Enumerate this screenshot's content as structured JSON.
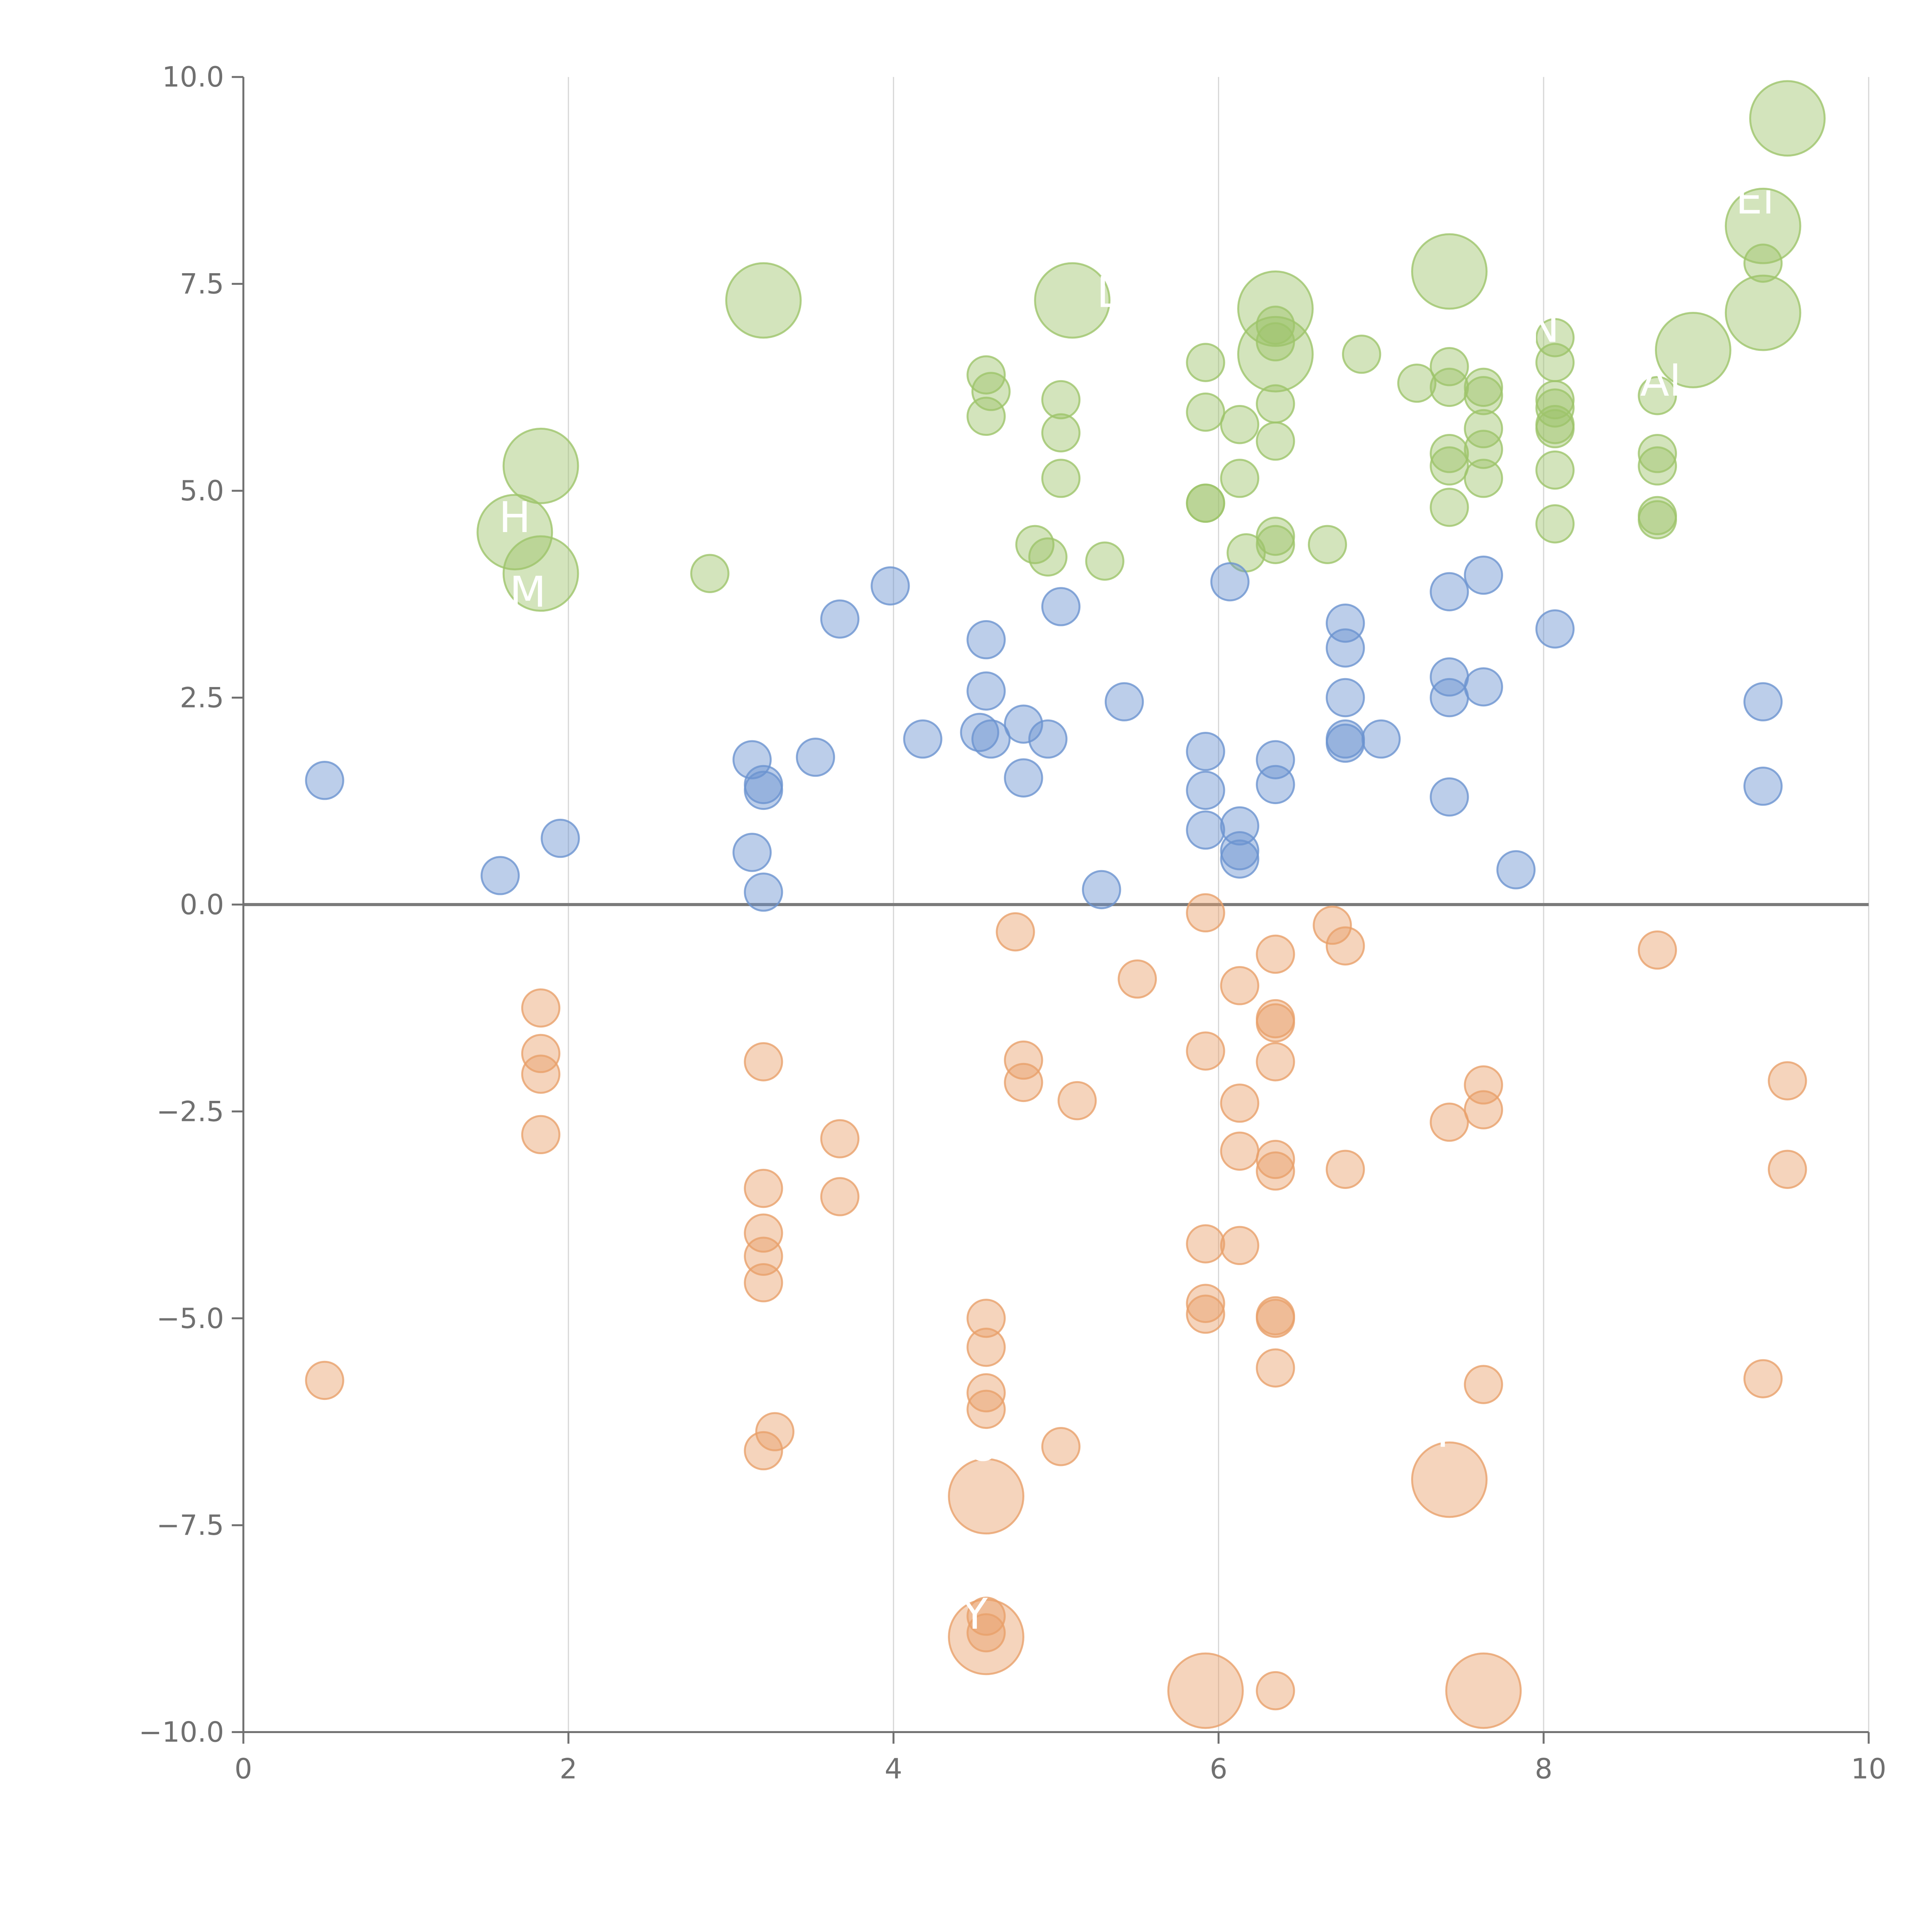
{
  "chart_data": {
    "type": "scatter",
    "title": "",
    "xlabel": "",
    "ylabel": "",
    "xlim": [
      0,
      10
    ],
    "ylim": [
      -10,
      10
    ],
    "x_ticks": [
      "0",
      "2",
      "4",
      "6",
      "8",
      "10"
    ],
    "y_ticks": [
      "−10.0",
      "−7.5",
      "−5.0",
      "−2.5",
      "0.0",
      "2.5",
      "5.0",
      "7.5",
      "10.0"
    ],
    "grid": "vertical-only",
    "zero_line": true,
    "colors": {
      "positive_high": "#9ec46a",
      "positive_low": "#6b93d0",
      "negative": "#e8a06a"
    },
    "series": [
      {
        "color_key": "positive_high",
        "points": [
          [
            3.2,
            7.3,
            "L"
          ],
          [
            5.1,
            7.3,
            "L"
          ],
          [
            6.35,
            7.2,
            "L"
          ],
          [
            7.42,
            7.65,
            "L"
          ],
          [
            9.5,
            9.5,
            "L"
          ],
          [
            9.35,
            8.2,
            "L"
          ],
          [
            9.35,
            7.15,
            "L"
          ],
          [
            8.92,
            6.7,
            "L"
          ],
          [
            6.35,
            6.65,
            "L"
          ],
          [
            1.83,
            5.3,
            "L"
          ],
          [
            1.67,
            4.5,
            "L"
          ],
          [
            1.83,
            4.0,
            "L"
          ],
          [
            2.87,
            4.0
          ],
          [
            4.57,
            6.4
          ],
          [
            4.6,
            6.2
          ],
          [
            4.57,
            5.9
          ],
          [
            5.03,
            6.1
          ],
          [
            5.03,
            5.7
          ],
          [
            5.03,
            5.15
          ],
          [
            4.87,
            4.35
          ],
          [
            4.95,
            4.2
          ],
          [
            5.3,
            4.15
          ],
          [
            5.92,
            6.55
          ],
          [
            5.92,
            5.95
          ],
          [
            5.92,
            4.85
          ],
          [
            5.92,
            4.85
          ],
          [
            6.13,
            5.8
          ],
          [
            6.13,
            5.15
          ],
          [
            6.17,
            4.25
          ],
          [
            6.35,
            7.0
          ],
          [
            6.35,
            6.8
          ],
          [
            6.35,
            6.05
          ],
          [
            6.35,
            5.6
          ],
          [
            6.35,
            4.45
          ],
          [
            6.35,
            4.35
          ],
          [
            6.67,
            4.35
          ],
          [
            6.88,
            6.65
          ],
          [
            7.22,
            6.3
          ],
          [
            7.42,
            6.5
          ],
          [
            7.42,
            6.25
          ],
          [
            7.42,
            5.45
          ],
          [
            7.42,
            5.3
          ],
          [
            7.42,
            4.8
          ],
          [
            7.63,
            6.25
          ],
          [
            7.63,
            6.15
          ],
          [
            7.63,
            5.75
          ],
          [
            7.63,
            5.5
          ],
          [
            7.63,
            5.15
          ],
          [
            8.07,
            6.85
          ],
          [
            8.07,
            6.55
          ],
          [
            8.07,
            6.1
          ],
          [
            8.07,
            6.0
          ],
          [
            8.07,
            5.8
          ],
          [
            8.07,
            5.75
          ],
          [
            8.07,
            5.25
          ],
          [
            8.07,
            4.6
          ],
          [
            8.7,
            6.15
          ],
          [
            8.7,
            5.45
          ],
          [
            8.7,
            5.3
          ],
          [
            8.7,
            4.7
          ],
          [
            8.7,
            4.65
          ],
          [
            9.35,
            7.75
          ]
        ]
      },
      {
        "color_key": "positive_low",
        "points": [
          [
            0.5,
            1.5
          ],
          [
            1.58,
            0.35
          ],
          [
            1.95,
            0.8
          ],
          [
            3.13,
            1.75
          ],
          [
            3.13,
            0.63
          ],
          [
            3.2,
            1.45
          ],
          [
            3.2,
            1.38
          ],
          [
            3.2,
            0.15
          ],
          [
            3.52,
            1.78
          ],
          [
            3.67,
            3.45
          ],
          [
            3.98,
            3.85
          ],
          [
            4.18,
            2.0
          ],
          [
            4.53,
            2.08
          ],
          [
            4.57,
            3.2
          ],
          [
            4.57,
            2.58
          ],
          [
            4.6,
            2.0
          ],
          [
            4.8,
            2.18
          ],
          [
            4.8,
            1.53
          ],
          [
            4.95,
            2.0
          ],
          [
            5.03,
            3.6
          ],
          [
            5.28,
            0.18
          ],
          [
            5.42,
            2.45
          ],
          [
            5.92,
            1.85
          ],
          [
            5.92,
            1.38
          ],
          [
            5.92,
            0.9
          ],
          [
            6.07,
            3.9
          ],
          [
            6.13,
            0.95
          ],
          [
            6.13,
            0.65
          ],
          [
            6.13,
            0.55
          ],
          [
            6.35,
            1.75
          ],
          [
            6.35,
            1.45
          ],
          [
            6.78,
            3.4
          ],
          [
            6.78,
            3.1
          ],
          [
            6.78,
            2.5
          ],
          [
            6.78,
            2.0
          ],
          [
            6.78,
            1.95
          ],
          [
            7.0,
            2.0
          ],
          [
            7.42,
            3.78
          ],
          [
            7.42,
            2.75
          ],
          [
            7.42,
            2.5
          ],
          [
            7.42,
            1.3
          ],
          [
            7.63,
            3.98
          ],
          [
            7.63,
            2.63
          ],
          [
            7.83,
            0.42
          ],
          [
            8.07,
            3.33
          ],
          [
            9.35,
            2.45
          ],
          [
            9.35,
            1.43
          ]
        ]
      },
      {
        "color_key": "negative",
        "points": [
          [
            4.57,
            -7.15,
            "L"
          ],
          [
            4.57,
            -8.85,
            "L"
          ],
          [
            5.92,
            -9.5,
            "L"
          ],
          [
            7.42,
            -6.95,
            "L"
          ],
          [
            7.63,
            -9.5,
            "L"
          ],
          [
            0.5,
            -5.75
          ],
          [
            1.83,
            -1.25
          ],
          [
            1.83,
            -1.8
          ],
          [
            1.83,
            -2.05
          ],
          [
            1.83,
            -2.78
          ],
          [
            3.2,
            -1.9
          ],
          [
            3.2,
            -3.43
          ],
          [
            3.2,
            -3.97
          ],
          [
            3.2,
            -4.25
          ],
          [
            3.2,
            -4.57
          ],
          [
            3.2,
            -6.6
          ],
          [
            3.27,
            -6.37
          ],
          [
            3.67,
            -2.83
          ],
          [
            3.67,
            -3.53
          ],
          [
            4.57,
            -5.0
          ],
          [
            4.57,
            -5.35
          ],
          [
            4.57,
            -5.9
          ],
          [
            4.57,
            -6.1
          ],
          [
            4.57,
            -8.6
          ],
          [
            4.57,
            -8.8
          ],
          [
            4.75,
            -0.33
          ],
          [
            4.8,
            -1.88
          ],
          [
            4.8,
            -2.15
          ],
          [
            5.03,
            -6.55
          ],
          [
            5.13,
            -2.37
          ],
          [
            5.5,
            -0.9
          ],
          [
            5.92,
            -0.1
          ],
          [
            5.92,
            -1.77
          ],
          [
            5.92,
            -4.1
          ],
          [
            5.92,
            -4.82
          ],
          [
            5.92,
            -4.95
          ],
          [
            6.13,
            -0.98
          ],
          [
            6.13,
            -2.4
          ],
          [
            6.13,
            -2.98
          ],
          [
            6.13,
            -4.12
          ],
          [
            6.35,
            -0.6
          ],
          [
            6.35,
            -1.38
          ],
          [
            6.35,
            -1.43
          ],
          [
            6.35,
            -1.9
          ],
          [
            6.35,
            -3.08
          ],
          [
            6.35,
            -3.22
          ],
          [
            6.35,
            -4.97
          ],
          [
            6.35,
            -5.0
          ],
          [
            6.35,
            -5.6
          ],
          [
            6.35,
            -9.5
          ],
          [
            6.7,
            -0.25
          ],
          [
            6.78,
            -0.5
          ],
          [
            6.78,
            -3.2
          ],
          [
            7.42,
            -2.63
          ],
          [
            7.63,
            -2.18
          ],
          [
            7.63,
            -2.48
          ],
          [
            7.63,
            -5.8
          ],
          [
            8.7,
            -0.55
          ],
          [
            9.35,
            -5.73
          ],
          [
            9.5,
            -2.13
          ],
          [
            9.5,
            -3.2
          ]
        ]
      }
    ],
    "annotations": [
      {
        "text": "H",
        "x": 1.67,
        "y": 4.5
      },
      {
        "text": "M",
        "x": 1.75,
        "y": 3.6
      },
      {
        "text": "N",
        "x": 8.0,
        "y": 6.8
      },
      {
        "text": "Al",
        "x": 8.72,
        "y": 6.15
      },
      {
        "text": "Ei",
        "x": 9.3,
        "y": 8.35
      },
      {
        "text": "D",
        "x": 5.35,
        "y": 7.22
      },
      {
        "text": "O",
        "x": 4.55,
        "y": -6.72
      },
      {
        "text": "Y",
        "x": 4.5,
        "y": -8.75
      },
      {
        "text": "P",
        "x": 7.42,
        "y": -6.55
      }
    ]
  }
}
